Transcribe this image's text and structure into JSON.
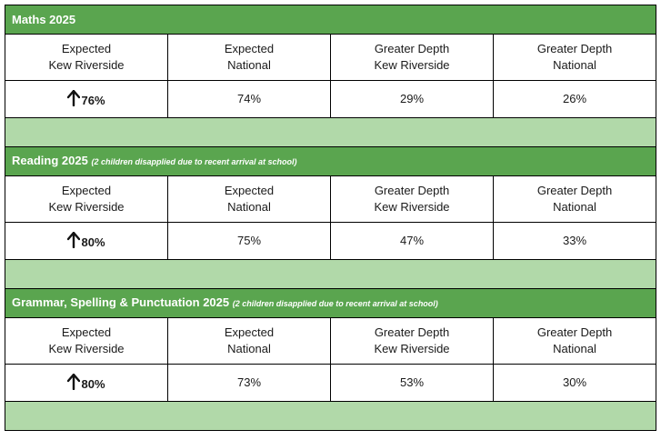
{
  "colors": {
    "header_green": "#5aa54f",
    "spacer_green": "#b1d9a9",
    "border": "#000000"
  },
  "icons": {
    "up_arrow": "up-arrow-icon"
  },
  "sections": [
    {
      "title": "Maths 2025",
      "note": "",
      "columns": [
        {
          "line1": "Expected",
          "line2": "Kew Riverside"
        },
        {
          "line1": "Expected",
          "line2": "National"
        },
        {
          "line1": "Greater Depth",
          "line2": "Kew Riverside"
        },
        {
          "line1": "Greater Depth",
          "line2": "National"
        }
      ],
      "values": [
        "76%",
        "74%",
        "29%",
        "26%"
      ]
    },
    {
      "title": "Reading 2025",
      "note": "(2 children disapplied due to recent arrival at school)",
      "columns": [
        {
          "line1": "Expected",
          "line2": "Kew Riverside"
        },
        {
          "line1": "Expected",
          "line2": "National"
        },
        {
          "line1": "Greater Depth",
          "line2": "Kew Riverside"
        },
        {
          "line1": "Greater Depth",
          "line2": "National"
        }
      ],
      "values": [
        "80%",
        "75%",
        "47%",
        "33%"
      ]
    },
    {
      "title": "Grammar, Spelling & Punctuation 2025",
      "note": "(2 children disapplied due to recent arrival at school)",
      "columns": [
        {
          "line1": "Expected",
          "line2": "Kew Riverside"
        },
        {
          "line1": "Expected",
          "line2": "National"
        },
        {
          "line1": "Greater Depth",
          "line2": "Kew Riverside"
        },
        {
          "line1": "Greater Depth",
          "line2": "National"
        }
      ],
      "values": [
        "80%",
        "73%",
        "53%",
        "30%"
      ]
    }
  ]
}
